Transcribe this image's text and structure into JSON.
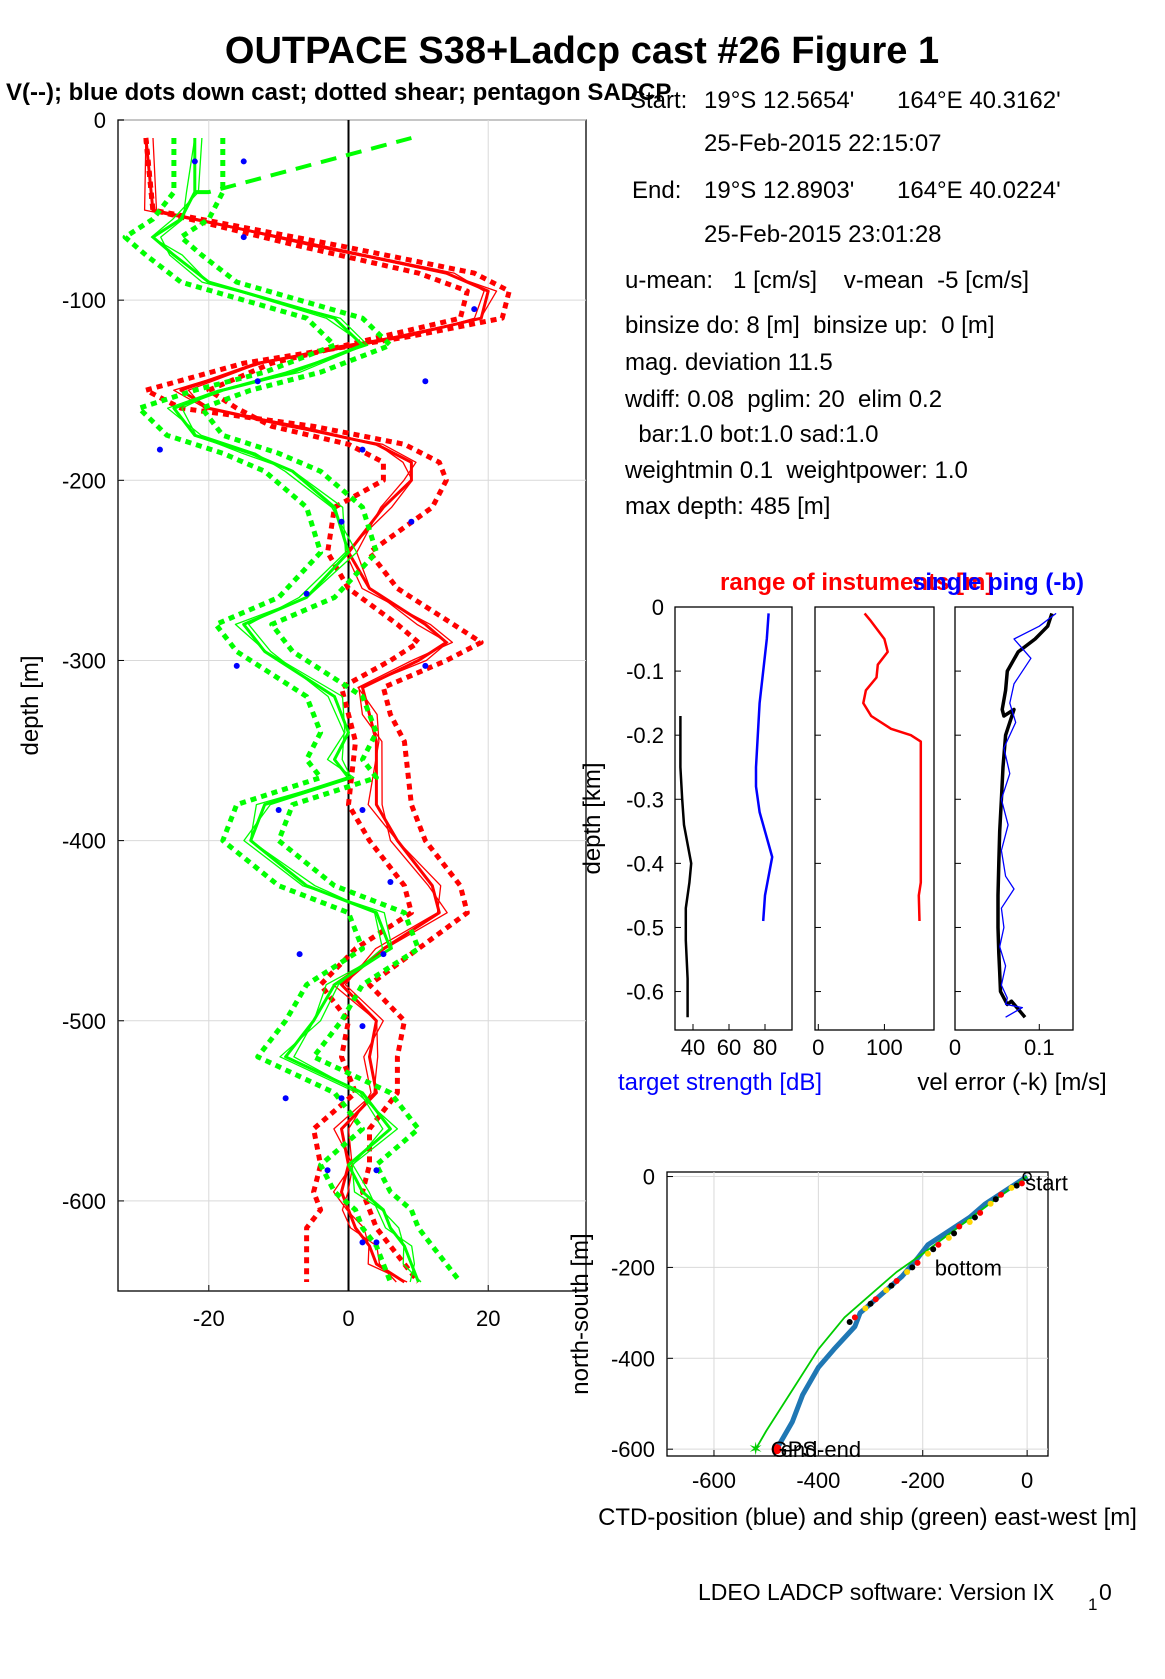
{
  "title": "OUTPACE S38+Ladcp cast #26  Figure 1",
  "subtitle": "V(--); blue dots down cast; dotted shear; pentagon SADCP",
  "info": {
    "start_label": "Start:",
    "start_lat": "19°S 12.5654'",
    "start_lon": "164°E 40.3162'",
    "start_time": "25-Feb-2015 22:15:07",
    "end_label": "End:",
    "end_lat": "19°S 12.8903'",
    "end_lon": "164°E 40.0224'",
    "end_time": "25-Feb-2015 23:01:28",
    "mean_line": "u-mean:   1 [cm/s]    v-mean  -5 [cm/s]",
    "binsize_line": "binsize do: 8 [m]  binsize up:  0 [m]",
    "magdev_line": "mag. deviation 11.5",
    "wdiff_line": "wdiff: 0.08  pglim: 20  elim 0.2",
    "bar_line": "  bar:1.0 bot:1.0 sad:1.0",
    "weight_line": "weightmin 0.1  weightpower: 1.0",
    "maxdepth_line": "max depth: 485 [m]"
  },
  "footer": {
    "text": "LDEO LADCP software: Version IX",
    "subscript": "1",
    "tail": "0"
  },
  "chart_data": [
    {
      "type": "line",
      "panel": "velocity-profile",
      "ylabel": "depth [m]",
      "xlim": [
        -33,
        34
      ],
      "ylim": [
        -650,
        0
      ],
      "xticks": [
        -20,
        0,
        20
      ],
      "yticks": [
        0,
        -100,
        -200,
        -300,
        -400,
        -500,
        -600
      ],
      "grid": true,
      "colors": {
        "u": "#ff0000",
        "v": "#00ff00",
        "dots": "#0000ff",
        "zero": "#000000"
      },
      "series": [
        {
          "key": "u",
          "style": "solid",
          "x": [
            -29,
            -28,
            -4,
            14,
            20,
            19,
            8,
            -13,
            -24,
            -20,
            -8,
            4,
            9,
            9,
            5,
            0,
            3,
            11,
            14,
            10,
            2,
            3,
            4,
            4,
            7,
            12,
            13,
            5,
            -1,
            4,
            3,
            4,
            -1,
            0,
            -1,
            0,
            1,
            3,
            4,
            8
          ],
          "y": [
            -10,
            -50,
            -70,
            -85,
            -95,
            -110,
            -120,
            -135,
            -150,
            -160,
            -170,
            -180,
            -190,
            -200,
            -215,
            -240,
            -260,
            -280,
            -290,
            -300,
            -315,
            -330,
            -345,
            -380,
            -400,
            -425,
            -440,
            -460,
            -480,
            -500,
            -520,
            -540,
            -560,
            -580,
            -595,
            -605,
            -615,
            -625,
            -635,
            -645
          ]
        },
        {
          "key": "u",
          "style": "dotted",
          "x": [
            -29,
            -28,
            -1,
            18,
            23,
            22,
            9,
            -15,
            -29,
            -24,
            -5,
            8,
            13,
            14,
            12,
            3,
            7,
            15,
            19,
            14,
            5,
            6,
            8,
            9,
            11,
            16,
            17,
            10,
            3,
            8,
            7,
            7,
            3,
            3,
            2,
            3,
            4,
            6,
            8,
            10
          ],
          "y": [
            -10,
            -50,
            -70,
            -85,
            -95,
            -110,
            -120,
            -135,
            -150,
            -160,
            -170,
            -180,
            -190,
            -200,
            -215,
            -240,
            -260,
            -280,
            -290,
            -300,
            -315,
            -330,
            -345,
            -380,
            -400,
            -425,
            -440,
            -460,
            -480,
            -500,
            -520,
            -540,
            -560,
            -580,
            -595,
            -605,
            -615,
            -625,
            -635,
            -645
          ]
        },
        {
          "key": "u",
          "style": "dotted",
          "x": [
            -29,
            -28,
            -7,
            10,
            17,
            16,
            5,
            -11,
            -20,
            -16,
            -11,
            0,
            5,
            5,
            -2,
            -3,
            0,
            7,
            10,
            6,
            -1,
            0,
            1,
            0,
            3,
            8,
            9,
            1,
            -4,
            0,
            -1,
            1,
            -5,
            -4,
            -5,
            -4,
            -6,
            -6,
            -6,
            -6
          ],
          "y": [
            -10,
            -50,
            -70,
            -85,
            -95,
            -110,
            -120,
            -135,
            -150,
            -160,
            -170,
            -180,
            -190,
            -200,
            -215,
            -240,
            -260,
            -280,
            -290,
            -300,
            -315,
            -330,
            -345,
            -380,
            -400,
            -425,
            -440,
            -460,
            -480,
            -500,
            -520,
            -540,
            -560,
            -580,
            -595,
            -605,
            -615,
            -625,
            -635,
            -645
          ]
        },
        {
          "key": "v",
          "style": "solid",
          "x": [
            -22,
            -22,
            -24,
            -28,
            -25,
            -20,
            -2,
            2,
            -8,
            -18,
            -25,
            -22,
            -14,
            -8,
            -2,
            0,
            -6,
            -15,
            -12,
            -2,
            0,
            -2,
            0,
            -12,
            -14,
            -6,
            4,
            6,
            -2,
            -5,
            -9,
            2,
            6,
            0,
            2,
            5,
            6,
            8,
            9,
            10
          ],
          "y": [
            -10,
            -40,
            -55,
            -65,
            -75,
            -90,
            -110,
            -125,
            -140,
            -150,
            -160,
            -175,
            -185,
            -195,
            -215,
            -240,
            -265,
            -280,
            -295,
            -320,
            -340,
            -355,
            -365,
            -380,
            -400,
            -425,
            -440,
            -460,
            -480,
            -500,
            -520,
            -540,
            -560,
            -580,
            -595,
            -605,
            -615,
            -625,
            -635,
            -645
          ]
        },
        {
          "key": "v",
          "style": "dotted",
          "x": [
            -18,
            -18,
            -20,
            -24,
            -21,
            -16,
            2,
            6,
            -4,
            -14,
            -21,
            -18,
            -10,
            -4,
            2,
            4,
            -2,
            -11,
            -8,
            2,
            4,
            2,
            4,
            -8,
            -10,
            -2,
            8,
            10,
            2,
            -1,
            -5,
            6,
            10,
            4,
            6,
            9,
            10,
            12,
            14,
            16
          ],
          "y": [
            -10,
            -40,
            -55,
            -65,
            -75,
            -90,
            -110,
            -125,
            -140,
            -150,
            -160,
            -175,
            -185,
            -195,
            -215,
            -240,
            -265,
            -280,
            -295,
            -320,
            -340,
            -355,
            -365,
            -380,
            -400,
            -425,
            -440,
            -460,
            -480,
            -500,
            -520,
            -540,
            -560,
            -580,
            -595,
            -605,
            -615,
            -625,
            -635,
            -645
          ]
        },
        {
          "key": "v",
          "style": "dotted",
          "x": [
            -25,
            -25,
            -28,
            -32,
            -29,
            -24,
            -6,
            -2,
            -12,
            -22,
            -30,
            -26,
            -18,
            -12,
            -6,
            -4,
            -10,
            -19,
            -16,
            -6,
            -4,
            -6,
            -4,
            -16,
            -18,
            -10,
            0,
            2,
            -6,
            -9,
            -13,
            -2,
            2,
            -4,
            -2,
            1,
            2,
            4,
            5,
            6
          ],
          "y": [
            -10,
            -40,
            -55,
            -65,
            -75,
            -90,
            -110,
            -125,
            -140,
            -150,
            -160,
            -175,
            -185,
            -195,
            -215,
            -240,
            -265,
            -280,
            -295,
            -320,
            -340,
            -355,
            -365,
            -380,
            -400,
            -425,
            -440,
            -460,
            -480,
            -500,
            -520,
            -540,
            -560,
            -580,
            -595,
            -605,
            -615,
            -625,
            -635,
            -645
          ]
        },
        {
          "key": "v",
          "style": "dashed",
          "x": [
            -22,
            -20,
            9
          ],
          "y": [
            -40,
            -40,
            -10
          ]
        }
      ],
      "dots": {
        "x": [
          -22,
          -15,
          -15,
          18,
          -13,
          11,
          -27,
          2,
          -1,
          9,
          -6,
          -16,
          11,
          -10,
          2,
          6,
          -7,
          5,
          2,
          -9,
          -1,
          4,
          -3,
          2,
          4
        ],
        "y": [
          -23,
          -23,
          -65,
          -105,
          -145,
          -145,
          -183,
          -183,
          -223,
          -223,
          -263,
          -303,
          -303,
          -383,
          -383,
          -423,
          -463,
          -463,
          -503,
          -543,
          -543,
          -583,
          -583,
          -623,
          -623
        ]
      }
    },
    {
      "type": "line",
      "panel": "target-strength",
      "ylabel": "depth [km]",
      "xlabel": "target strength [dB]",
      "xlim": [
        30,
        95
      ],
      "ylim": [
        -0.66,
        0
      ],
      "xticks": [
        40,
        60,
        80
      ],
      "yticks": [
        0,
        -0.1,
        -0.2,
        -0.3,
        -0.4,
        -0.5,
        -0.6
      ],
      "series": [
        {
          "color": "#0000ff",
          "x": [
            82,
            81,
            79,
            77,
            76,
            75,
            75,
            77,
            80,
            82,
            84,
            82,
            80,
            79
          ],
          "y": [
            -0.01,
            -0.05,
            -0.1,
            -0.15,
            -0.2,
            -0.25,
            -0.28,
            -0.32,
            -0.35,
            -0.37,
            -0.39,
            -0.42,
            -0.45,
            -0.49
          ]
        },
        {
          "color": "#000000",
          "x": [
            33,
            33,
            34,
            35,
            37,
            39,
            38,
            36,
            36,
            37,
            37
          ],
          "y": [
            -0.17,
            -0.25,
            -0.3,
            -0.34,
            -0.37,
            -0.4,
            -0.43,
            -0.47,
            -0.52,
            -0.58,
            -0.64
          ]
        }
      ]
    },
    {
      "type": "line",
      "panel": "instrument-range",
      "title": "range of instuments [m]",
      "xlim": [
        -5,
        175
      ],
      "ylim": [
        -0.66,
        0
      ],
      "xticks": [
        0,
        100
      ],
      "series": [
        {
          "color": "#ff0000",
          "x": [
            70,
            78,
            100,
            105,
            90,
            88,
            72,
            68,
            80,
            110,
            140,
            155,
            155,
            155,
            155,
            152,
            153
          ],
          "y": [
            -0.01,
            -0.02,
            -0.05,
            -0.07,
            -0.09,
            -0.11,
            -0.13,
            -0.15,
            -0.17,
            -0.19,
            -0.2,
            -0.21,
            -0.3,
            -0.4,
            -0.43,
            -0.45,
            -0.49
          ]
        }
      ]
    },
    {
      "type": "line",
      "panel": "single-ping",
      "title": "single ping (-b)",
      "xlabel": "vel error (-k) [m/s]",
      "xlim": [
        0,
        0.14
      ],
      "ylim": [
        -0.66,
        0
      ],
      "xticks": [
        0,
        0.1
      ],
      "series": [
        {
          "color": "#000000",
          "x": [
            0.115,
            0.11,
            0.095,
            0.075,
            0.062,
            0.06,
            0.056,
            0.058,
            0.07,
            0.06,
            0.057,
            0.055,
            0.053,
            0.052,
            0.051,
            0.051,
            0.052,
            0.053,
            0.054,
            0.058,
            0.062,
            0.067,
            0.083
          ],
          "y": [
            -0.01,
            -0.03,
            -0.05,
            -0.07,
            -0.1,
            -0.13,
            -0.16,
            -0.17,
            -0.16,
            -0.2,
            -0.25,
            -0.3,
            -0.35,
            -0.4,
            -0.45,
            -0.5,
            -0.54,
            -0.57,
            -0.6,
            -0.61,
            -0.62,
            -0.615,
            -0.64
          ]
        },
        {
          "color": "#0000ff",
          "x": [
            0.12,
            0.1,
            0.07,
            0.09,
            0.07,
            0.065,
            0.072,
            0.058,
            0.065,
            0.055,
            0.063,
            0.055,
            0.06,
            0.07,
            0.055,
            0.058,
            0.053,
            0.06,
            0.055,
            0.062,
            0.06,
            0.08,
            0.06
          ],
          "y": [
            -0.01,
            -0.03,
            -0.05,
            -0.08,
            -0.12,
            -0.15,
            -0.18,
            -0.22,
            -0.26,
            -0.3,
            -0.34,
            -0.38,
            -0.42,
            -0.44,
            -0.47,
            -0.5,
            -0.53,
            -0.56,
            -0.59,
            -0.61,
            -0.62,
            -0.625,
            -0.64
          ]
        }
      ]
    },
    {
      "type": "line",
      "panel": "position",
      "xlabel": "CTD-position (blue) and ship (green) east-west [m]",
      "ylabel": "north-south [m]",
      "xlim": [
        -690,
        40
      ],
      "ylim": [
        -615,
        10
      ],
      "xticks": [
        -600,
        -400,
        -200,
        0
      ],
      "yticks": [
        0,
        -200,
        -400,
        -600
      ],
      "labels": {
        "start": "start",
        "bottom": "bottom",
        "end": "end",
        "gps_end": "GPS-end"
      },
      "series": [
        {
          "name": "CTD",
          "color": "#1f77b4",
          "x": [
            0,
            -40,
            -80,
            -110,
            -150,
            -190,
            -210,
            -240,
            -280,
            -320,
            -330,
            -370,
            -400,
            -430,
            -450,
            -470,
            -480
          ],
          "y": [
            0,
            -30,
            -60,
            -90,
            -120,
            -150,
            -180,
            -220,
            -260,
            -300,
            -330,
            -380,
            -420,
            -480,
            -540,
            -580,
            -600
          ]
        },
        {
          "name": "ship",
          "color": "#00cc00",
          "x": [
            0,
            -60,
            -130,
            -200,
            -250,
            -300,
            -350,
            -400,
            -450,
            -500,
            -520
          ],
          "y": [
            0,
            -50,
            -110,
            -170,
            -210,
            -260,
            -310,
            -380,
            -470,
            -560,
            -600
          ]
        }
      ],
      "dots": {
        "black": {
          "x": [
            -20,
            -60,
            -100,
            -140,
            -180,
            -220,
            -260,
            -300,
            -340
          ],
          "y": [
            -20,
            -50,
            -90,
            -125,
            -160,
            -200,
            -240,
            -280,
            -320
          ]
        },
        "red": {
          "x": [
            -10,
            -50,
            -90,
            -130,
            -170,
            -210,
            -250,
            -290,
            -330
          ],
          "y": [
            -15,
            -40,
            -80,
            -110,
            -150,
            -190,
            -230,
            -270,
            -310
          ]
        },
        "yellow": {
          "x": [
            -30,
            -70,
            -110,
            -150,
            -190,
            -230,
            -270,
            -310
          ],
          "y": [
            -25,
            -60,
            -100,
            -135,
            -170,
            -210,
            -250,
            -290
          ]
        }
      }
    }
  ]
}
